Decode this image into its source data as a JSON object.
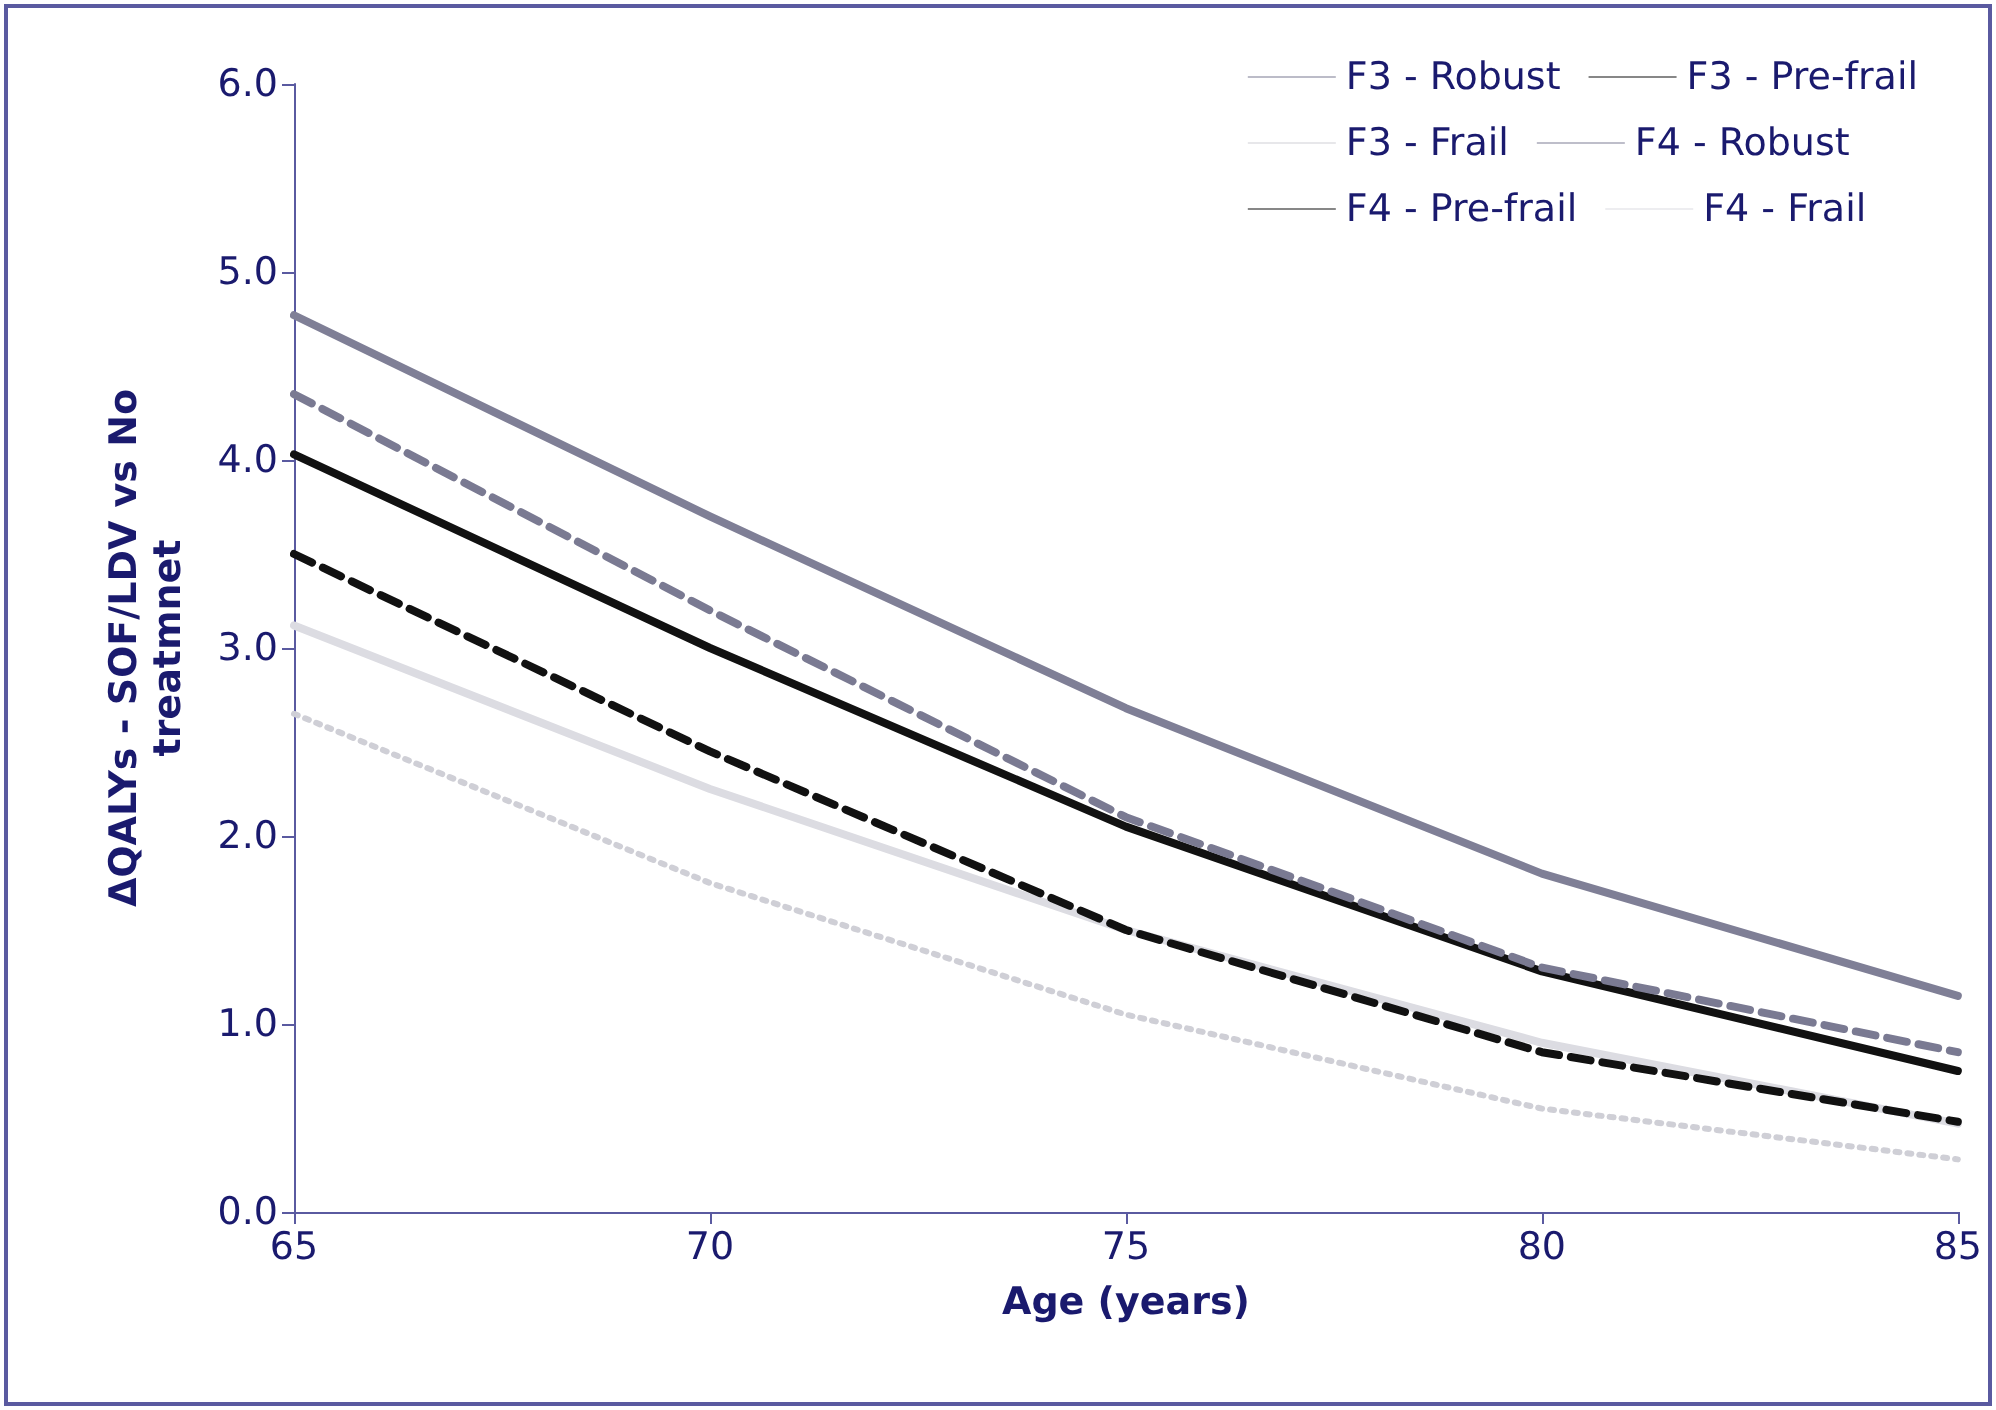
{
  "chart_data": {
    "type": "line",
    "xlabel": "Age (years)",
    "ylabel": "ΔQALYs - SOF/LDV vs No treatmnet",
    "x": [
      65,
      70,
      75,
      80,
      85
    ],
    "xlim": [
      65,
      85
    ],
    "xticks": [
      65,
      70,
      75,
      80,
      85
    ],
    "ylim": [
      0,
      6
    ],
    "yticks": [
      {
        "value": 0,
        "label": "0.0"
      },
      {
        "value": 1,
        "label": "1.0"
      },
      {
        "value": 2,
        "label": "2.0"
      },
      {
        "value": 3,
        "label": "3.0"
      },
      {
        "value": 4,
        "label": "4.0"
      },
      {
        "value": 5,
        "label": "5.0"
      },
      {
        "value": 6,
        "label": "6.0"
      }
    ],
    "grid": false,
    "legend": "top right",
    "marker": "none",
    "series": [
      {
        "name": "F3 - Robust",
        "color": "#7a7a92",
        "line_style": "dashed",
        "values": [
          4.35,
          3.2,
          2.1,
          1.3,
          0.85
        ]
      },
      {
        "name": "F3 - Pre-frail",
        "color": "#111111",
        "line_style": "dashed",
        "values": [
          3.5,
          2.45,
          1.5,
          0.85,
          0.48
        ]
      },
      {
        "name": "F3 - Frail",
        "color": "#cfcfd6",
        "line_style": "dotted",
        "values": [
          2.65,
          1.75,
          1.05,
          0.55,
          0.28
        ]
      },
      {
        "name": "F4 - Robust",
        "color": "#7f7f96",
        "line_style": "solid",
        "values": [
          4.77,
          3.7,
          2.68,
          1.8,
          1.15
        ]
      },
      {
        "name": "F4 - Pre-frail",
        "color": "#111111",
        "line_style": "solid",
        "values": [
          4.03,
          3.0,
          2.05,
          1.28,
          0.75
        ]
      },
      {
        "name": "F4 - Frail",
        "color": "#dcdce2",
        "line_style": "solid",
        "values": [
          3.12,
          2.25,
          1.5,
          0.9,
          0.47
        ]
      }
    ]
  }
}
